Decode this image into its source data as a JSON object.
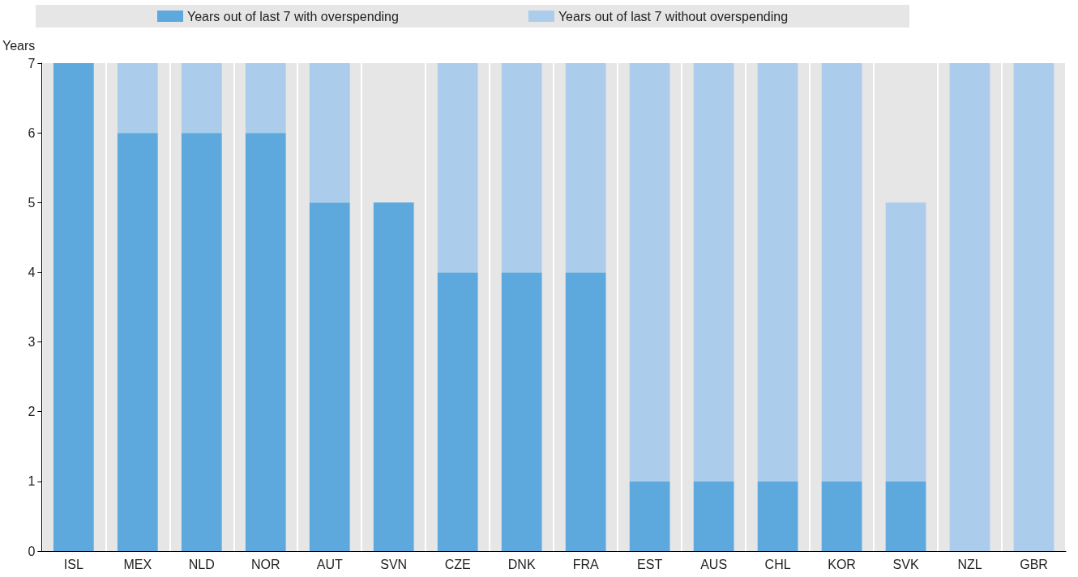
{
  "chart_data": {
    "type": "bar",
    "stacked": true,
    "ylabel": "Years",
    "categories": [
      "ISL",
      "MEX",
      "NLD",
      "NOR",
      "AUT",
      "SVN",
      "CZE",
      "DNK",
      "FRA",
      "EST",
      "AUS",
      "CHL",
      "KOR",
      "SVK",
      "NZL",
      "GBR"
    ],
    "series": [
      {
        "name": "Years out of last 7 with overspending",
        "color": "#5da9dd",
        "values": [
          7,
          6,
          6,
          6,
          5,
          5,
          4,
          4,
          4,
          1,
          1,
          1,
          1,
          1,
          0,
          0
        ]
      },
      {
        "name": "Years out of last 7 without overspending",
        "color": "#abcdeb",
        "values": [
          0,
          1,
          1,
          1,
          2,
          0,
          3,
          3,
          3,
          6,
          6,
          6,
          6,
          4,
          7,
          7
        ]
      }
    ],
    "ylim": [
      0,
      7
    ],
    "yticks": [
      0,
      1,
      2,
      3,
      4,
      5,
      6,
      7
    ],
    "grid": "x",
    "legend": "top"
  }
}
